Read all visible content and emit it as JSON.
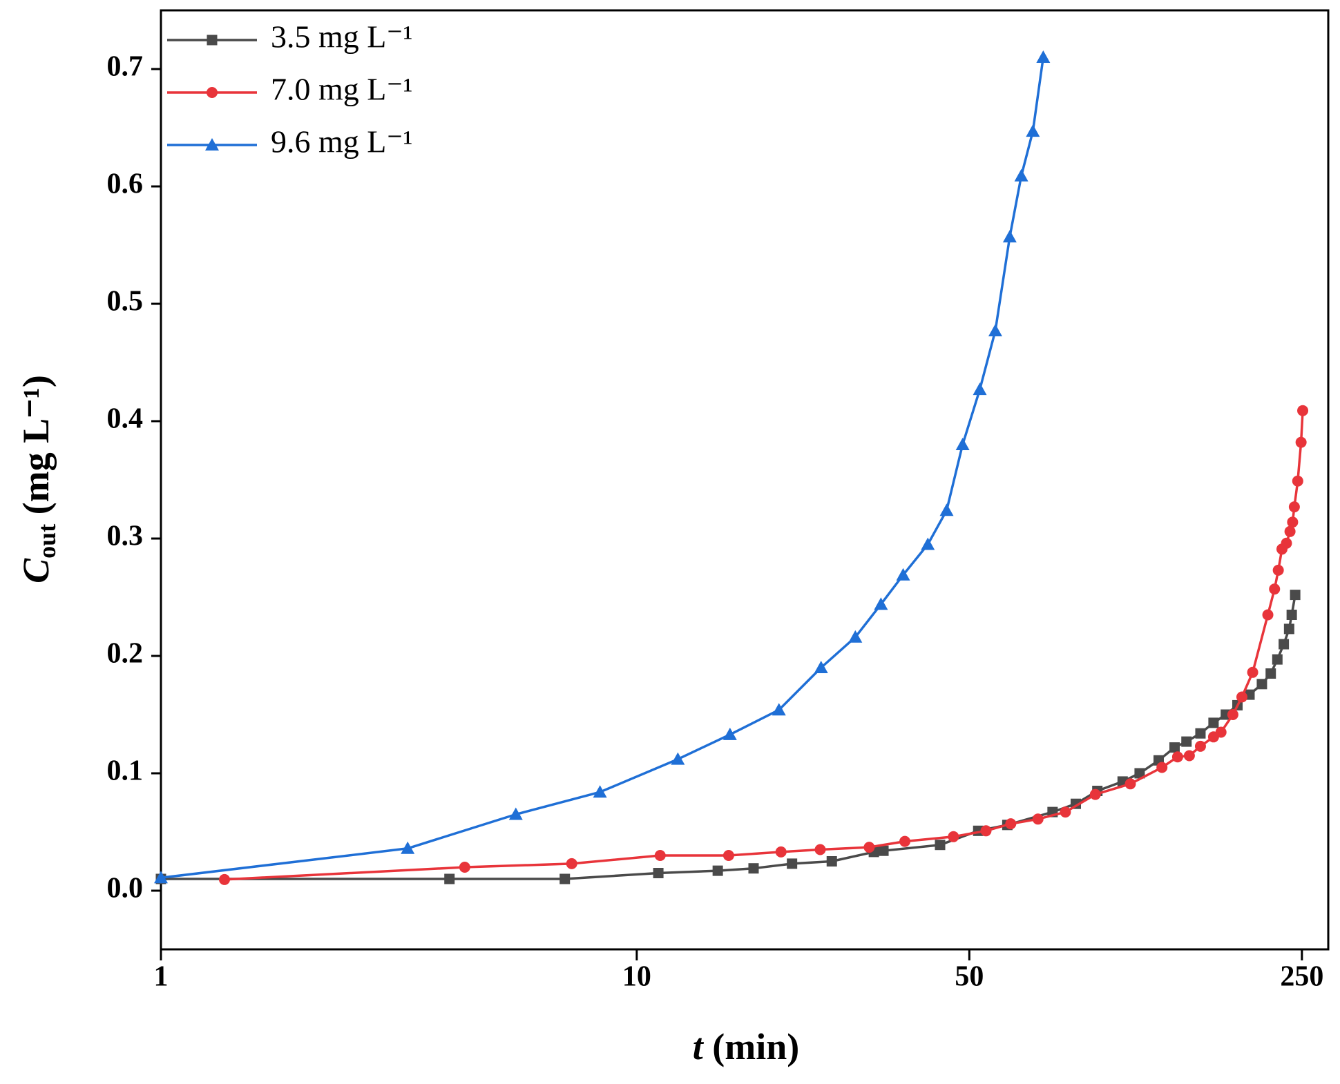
{
  "chart_data": {
    "type": "line",
    "xscale": "log",
    "xlabel": [
      "t",
      " (min)"
    ],
    "ylabel": [
      "C",
      "out",
      " (mg L⁻¹)"
    ],
    "xlim": [
      1,
      284
    ],
    "ylim": [
      -0.05,
      0.75
    ],
    "xticks": [
      1,
      10,
      50,
      250
    ],
    "yticks": [
      {
        "value": 0,
        "label": "0.0"
      },
      0.1,
      0.2,
      0.3,
      0.4,
      0.5,
      0.6,
      0.7
    ],
    "grid": false,
    "legend": "top-left",
    "series": [
      {
        "name": "3.5 mg L⁻¹",
        "color": "#4a4a4a",
        "marker": "square",
        "x": [
          1.0,
          4.04,
          7.06,
          11.1,
          14.8,
          17.6,
          21.2,
          25.7,
          31.5,
          33,
          43.4,
          52.2,
          60.1,
          74.8,
          83.7,
          92.9,
          105,
          114,
          125,
          135,
          143,
          153,
          163,
          173,
          183,
          194,
          206,
          215,
          222,
          229,
          235,
          238,
          242
        ],
        "values": [
          0.01,
          0.01,
          0.01,
          0.015,
          0.017,
          0.019,
          0.023,
          0.025,
          0.033,
          0.034,
          0.039,
          0.051,
          0.056,
          0.067,
          0.074,
          0.085,
          0.093,
          0.1,
          0.111,
          0.122,
          0.127,
          0.134,
          0.143,
          0.15,
          0.158,
          0.167,
          0.176,
          0.185,
          0.197,
          0.21,
          0.223,
          0.235,
          0.252
        ]
      },
      {
        "name": "7.0 mg L⁻¹",
        "color": "#e8343a",
        "marker": "circle",
        "x": [
          1.36,
          4.35,
          7.3,
          11.2,
          15.6,
          20.1,
          24.3,
          30.8,
          36.6,
          46.3,
          54.2,
          61.1,
          69.7,
          79.6,
          92.0,
          109,
          127,
          137,
          145,
          153,
          163,
          169,
          179,
          187,
          197,
          212,
          219,
          223,
          227,
          232,
          236,
          239,
          241,
          245,
          249,
          251
        ],
        "values": [
          0.0095,
          0.02,
          0.023,
          0.03,
          0.03,
          0.033,
          0.035,
          0.037,
          0.042,
          0.046,
          0.051,
          0.057,
          0.061,
          0.067,
          0.082,
          0.091,
          0.105,
          0.114,
          0.115,
          0.123,
          0.131,
          0.135,
          0.15,
          0.165,
          0.186,
          0.235,
          0.257,
          0.273,
          0.291,
          0.296,
          0.306,
          0.314,
          0.327,
          0.349,
          0.382,
          0.409
        ]
      },
      {
        "name": "9.6 mg L⁻¹",
        "color": "#1f6fd6",
        "marker": "triangle",
        "x": [
          1.0,
          3.3,
          5.57,
          8.37,
          12.2,
          15.7,
          19.9,
          24.4,
          28.8,
          32.6,
          36.3,
          40.9,
          44.8,
          48.4,
          52.6,
          56.7,
          60.8,
          64.3,
          68.0,
          71.5
        ],
        "values": [
          0.011,
          0.036,
          0.065,
          0.084,
          0.112,
          0.133,
          0.154,
          0.19,
          0.216,
          0.244,
          0.269,
          0.295,
          0.324,
          0.38,
          0.427,
          0.477,
          0.557,
          0.609,
          0.647,
          0.71
        ]
      }
    ]
  }
}
